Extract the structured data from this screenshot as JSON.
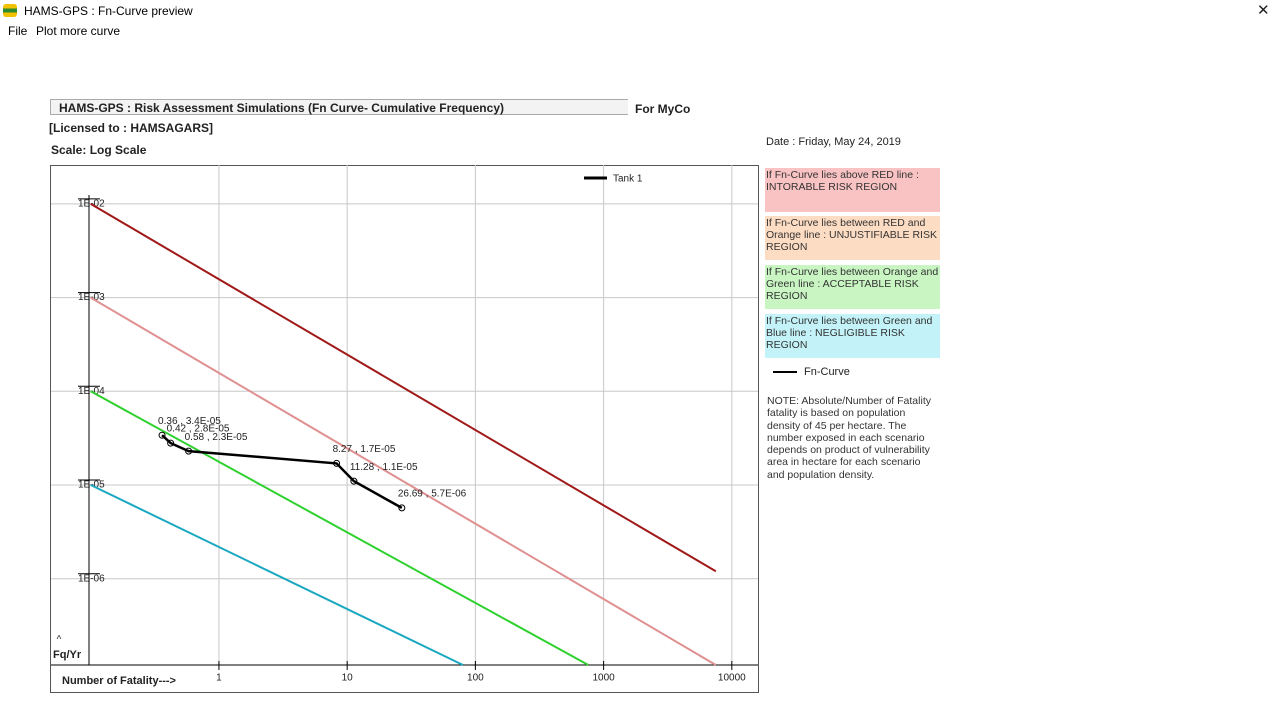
{
  "window": {
    "title": "HAMS-GPS : Fn-Curve preview"
  },
  "menu": [
    "File",
    "Plot more curve"
  ],
  "header": {
    "title": "HAMS-GPS : Risk Assessment Simulations (Fn Curve- Cumulative Frequency)",
    "company": "For MyCo",
    "license": "[Licensed to : HAMSAGARS]",
    "scale": "Scale: Log Scale",
    "date": "Date : Friday, May 24, 2019"
  },
  "regions": [
    {
      "text": "If Fn-Curve lies above RED line : INTORABLE RISK REGION",
      "color": "#f9c3c3"
    },
    {
      "text": "If Fn-Curve lies between RED and Orange line : UNJUSTIFIABLE RISK REGION",
      "color": "#fcdcc3"
    },
    {
      "text": "If Fn-Curve lies between Orange and Green line : ACCEPTABLE RISK REGION",
      "color": "#c9f5c3"
    },
    {
      "text": "If Fn-Curve lies between Green and Blue line : NEGLIGIBLE RISK REGION",
      "color": "#c3f3f8"
    }
  ],
  "side_legend": "Fn-Curve",
  "note": "NOTE: Absolute/Number of Fatality fatality is based on population density of 45 per hectare. The number exposed in each scenario depends on product of vulnerability area in hectare for each scenario and population density.",
  "chart_data": {
    "type": "line",
    "x_label": "Number of Fatality--->",
    "y_label": "Fq/Yr",
    "log_x": true,
    "log_y": true,
    "grid": true,
    "xlim": [
      0.049,
      16000
    ],
    "ylim": [
      1.2e-07,
      0.026
    ],
    "xticks": [
      1,
      10,
      100,
      1000,
      10000
    ],
    "yticks": [
      {
        "value": 0.01,
        "label": "1E-02"
      },
      {
        "value": 0.001,
        "label": "1E-03"
      },
      {
        "value": 0.0001,
        "label": "1E-04"
      },
      {
        "value": 1e-05,
        "label": "1E-05"
      },
      {
        "value": 1e-06,
        "label": "1E-06"
      }
    ],
    "legend": "top-right",
    "reference_lines": [
      {
        "color": "#a01818",
        "x": [
          0.1,
          7500
        ],
        "values": [
          0.01,
          1.2e-06
        ]
      },
      {
        "color": "#e09090",
        "x": [
          0.1,
          7500
        ],
        "values": [
          0.001,
          1.2e-07
        ]
      },
      {
        "color": "#2ed12e",
        "x": [
          0.1,
          760
        ],
        "values": [
          0.0001,
          1.2e-07
        ]
      },
      {
        "color": "#1aa8c0",
        "x": [
          0.1,
          80
        ],
        "values": [
          1e-05,
          1.2e-07
        ]
      }
    ],
    "series": [
      {
        "name": "Tank 1",
        "color": "#000000",
        "x": [
          0.36,
          0.42,
          0.58,
          8.27,
          11.28,
          26.69
        ],
        "values": [
          3.4e-05,
          2.8e-05,
          2.3e-05,
          1.7e-05,
          1.1e-05,
          5.7e-06
        ],
        "value_labels": [
          "0.36 , 3.4E-05",
          "0.42 , 2.8E-05",
          "0.58 , 2.3E-05",
          "8.27 , 1.7E-05",
          "11.28 , 1.1E-05",
          "26.69 , 5.7E-06"
        ]
      }
    ]
  }
}
